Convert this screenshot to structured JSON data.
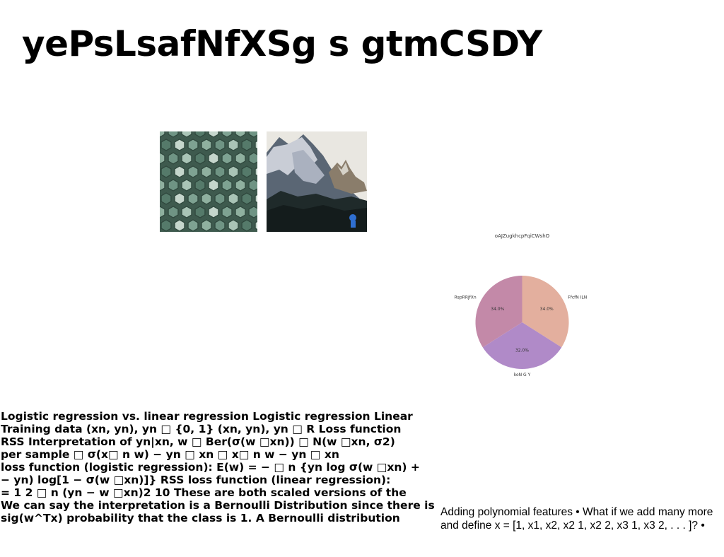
{
  "page": {
    "title": "yePsLsafNfXSg s gtmCSDY"
  },
  "images": [
    {
      "name": "tiles-photo",
      "subject": "green hexagonal prism tiles"
    },
    {
      "name": "mountain-photo",
      "subject": "snowy mountain peaks with forest"
    }
  ],
  "chart_data": {
    "type": "pie",
    "title": "oAJZugkhcpFqiCWshO",
    "slices": [
      {
        "label": "FfcfN ILN",
        "value": 34.0,
        "pct_label": "34.0%",
        "color": "#e3af9e"
      },
      {
        "label": "koN G Y",
        "value": 32.0,
        "pct_label": "32.0%",
        "color": "#b08ac8"
      },
      {
        "label": "RspRRjfXn",
        "value": 34.0,
        "pct_label": "34.0%",
        "color": "#c389a8"
      }
    ],
    "start_angle_deg": 90,
    "direction": "clockwise"
  },
  "body_text": {
    "lines": [
      "Logistic regression vs. linear regression Logistic regression Linear",
      "Training data (xn, yn), yn □ {0, 1} (xn, yn), yn □ R Loss function",
      "RSS Interpretation of yn|xn, w □ Ber(σ(w □xn)) □ N(w □xn, σ2)",
      "per sample □ σ(x□ n w) − yn □ xn □ x□ n w − yn □ xn",
      "loss function (logistic regression): E(w) = − □ n {yn log σ(w □xn) +",
      "− yn) log[1 − σ(w □xn)]} RSS loss function (linear regression):",
      "= 1 2 □ n (yn − w □xn)2 10 These are both scaled versions of the",
      "We can say the interpretation is a Bernoulli Distribution since there is",
      "sig(w^Tx) probability that the class is 1. A Bernoulli distribution"
    ]
  },
  "side_text": {
    "lines": [
      "Adding polynomial features • What if we add many more",
      "and define x = [1, x1, x2, x2 1, x2 2, x3 1, x3 2, . . . ]? •"
    ]
  }
}
